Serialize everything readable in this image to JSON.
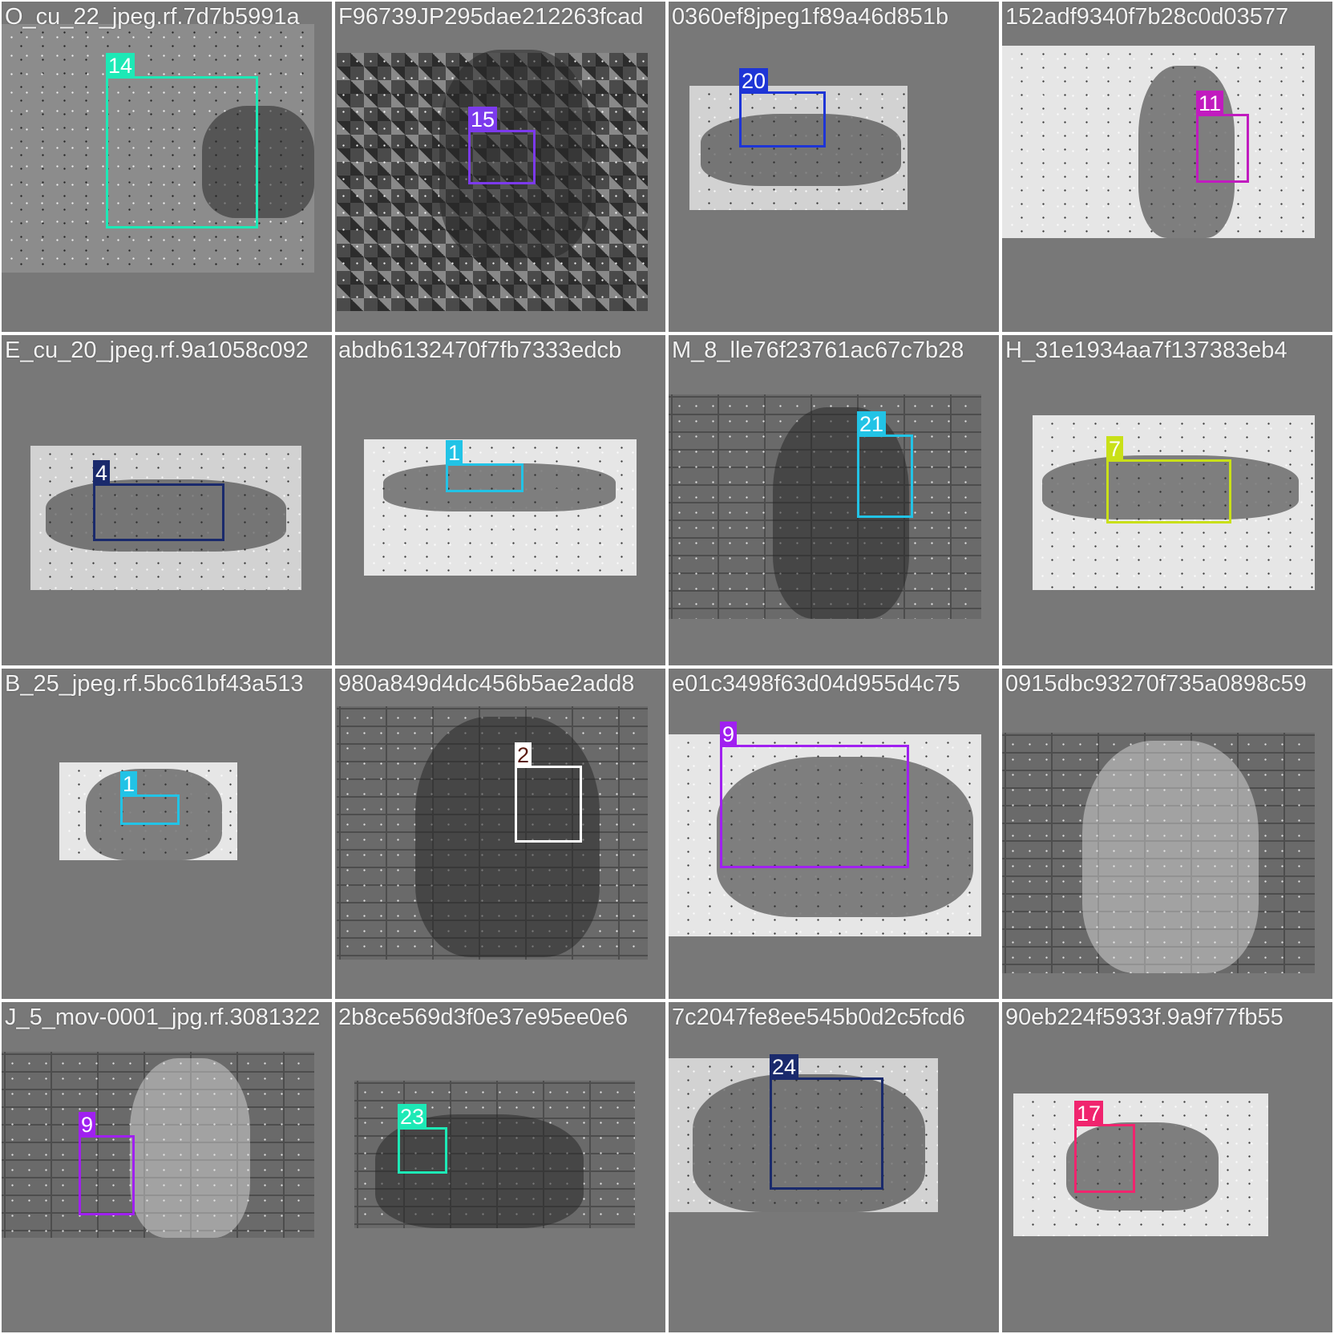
{
  "tiles": [
    {
      "label": "O_cu_22_jpeg.rf.7d7b5991a",
      "tone": "mid",
      "boxes": [
        {
          "class": "14",
          "color": "#1de9b6"
        }
      ]
    },
    {
      "label": "F96739JP295dae212263fcad",
      "tone": "plaid",
      "boxes": [
        {
          "class": "15",
          "color": "#7c3aed"
        }
      ]
    },
    {
      "label": "0360ef8jpeg1f89a46d851b",
      "tone": "light",
      "boxes": [
        {
          "class": "20",
          "color": "#1e35d6"
        }
      ]
    },
    {
      "label": "152adf9340f7b28c0d03577",
      "tone": "paper",
      "boxes": [
        {
          "class": "11",
          "color": "#c11bbf"
        }
      ]
    },
    {
      "label": "E_cu_20_jpeg.rf.9a1058c092",
      "tone": "light",
      "boxes": [
        {
          "class": "4",
          "color": "#1a2a6c"
        }
      ]
    },
    {
      "label": "abdb6132470f7fb7333edcb",
      "tone": "paper",
      "boxes": [
        {
          "class": "1",
          "color": "#22c3e6"
        }
      ]
    },
    {
      "label": "M_8_lle76f23761ac67c7b28",
      "tone": "brick",
      "boxes": [
        {
          "class": "21",
          "color": "#22c3e6"
        }
      ]
    },
    {
      "label": "H_31e1934aa7f137383eb4",
      "tone": "paper",
      "boxes": [
        {
          "class": "7",
          "color": "#c9e018"
        }
      ]
    },
    {
      "label": "B_25_jpeg.rf.5bc61bf43a513",
      "tone": "paper",
      "boxes": [
        {
          "class": "1",
          "color": "#22c3e6"
        }
      ]
    },
    {
      "label": "980a849d4dc456b5ae2add8",
      "tone": "brick",
      "boxes": [
        {
          "class": "2",
          "color": "#ffffff",
          "label_color": "#5a1a10"
        }
      ]
    },
    {
      "label": "e01c3498f63d04d955d4c75",
      "tone": "paper",
      "boxes": [
        {
          "class": "9",
          "color": "#a020f0"
        }
      ]
    },
    {
      "label": "0915dbc93270f735a0898c59",
      "tone": "brick",
      "boxes": []
    },
    {
      "label": "J_5_mov-0001_jpg.rf.3081322",
      "tone": "brick",
      "boxes": [
        {
          "class": "9",
          "color": "#a020f0"
        }
      ]
    },
    {
      "label": "2b8ce569d3f0e37e95ee0e6",
      "tone": "brick",
      "boxes": [
        {
          "class": "23",
          "color": "#1de9b6"
        }
      ]
    },
    {
      "label": "7c2047fe8ee545b0d2c5fcd6",
      "tone": "light",
      "boxes": [
        {
          "class": "24",
          "color": "#1a2a6c"
        }
      ]
    },
    {
      "label": "90eb224f5933f.9a9f77fb55",
      "tone": "paper",
      "boxes": [
        {
          "class": "17",
          "color": "#f0246e"
        }
      ]
    }
  ]
}
